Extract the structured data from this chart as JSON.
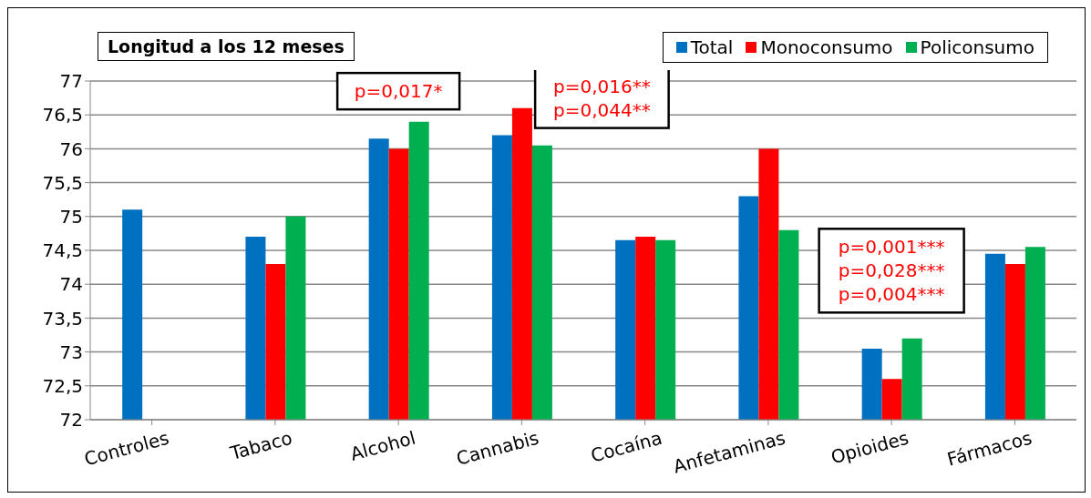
{
  "chart_data": {
    "type": "bar",
    "title": "Longitud a los 12 meses",
    "categories": [
      "Controles",
      "Tabaco",
      "Alcohol",
      "Cannabis",
      "Cocaína",
      "Anfetaminas",
      "Opioides",
      "Fármacos"
    ],
    "series": [
      {
        "name": "Total",
        "color": "#0070c0",
        "values": [
          75.1,
          74.7,
          76.15,
          76.2,
          74.65,
          75.3,
          73.05,
          74.45
        ]
      },
      {
        "name": "Monoconsumo",
        "color": "#ff0000",
        "values": [
          null,
          74.3,
          76.0,
          76.6,
          74.7,
          76.0,
          72.6,
          74.3
        ]
      },
      {
        "name": "Policonsumo",
        "color": "#00b050",
        "values": [
          null,
          75.0,
          76.4,
          76.05,
          74.65,
          74.8,
          73.2,
          74.55
        ]
      }
    ],
    "ylim": [
      72,
      77
    ],
    "yticks": [
      72,
      {
        "value": 72.5,
        "label": "72,5"
      },
      73,
      {
        "value": 73.5,
        "label": "73,5"
      },
      74,
      {
        "value": 74.5,
        "label": "74,5"
      },
      75,
      {
        "value": 75.5,
        "label": "75,5"
      },
      76,
      {
        "value": 76.5,
        "label": "76,5"
      },
      77
    ],
    "grid": "y",
    "legend": "top right",
    "annotations": [
      "p=0,017*",
      "p=0,016**",
      "p=0,044**",
      "p=0,001***",
      "p=0,028***",
      "p=0,004***"
    ]
  }
}
